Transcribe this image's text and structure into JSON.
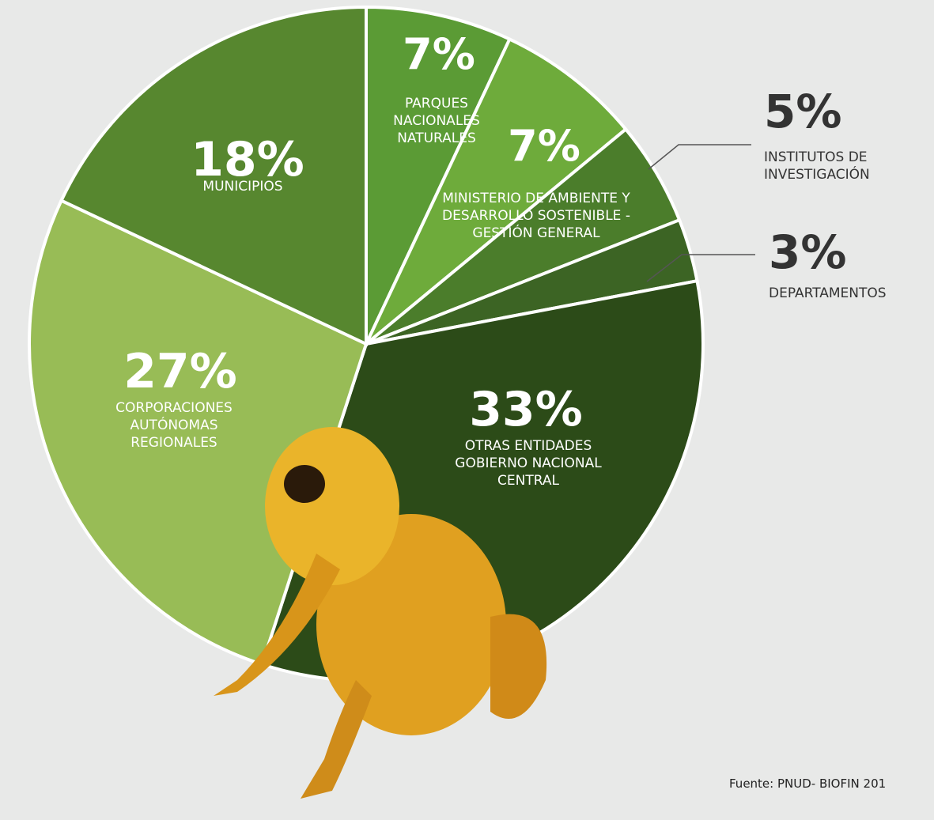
{
  "chart_data": {
    "type": "pie",
    "categories": [
      "PARQUES NACIONALES NATURALES",
      "MINISTERIO DE AMBIENTE Y DESARROLLO SOSTENIBLE - GESTIÓN GENERAL",
      "INSTITUTOS DE INVESTIGACIÓN",
      "DEPARTAMENTOS",
      "OTRAS ENTIDADES GOBIERNO NACIONAL CENTRAL",
      "CORPORACIONES AUTÓNOMAS REGIONALES",
      "MUNICIPIOS"
    ],
    "values": [
      7,
      7,
      5,
      3,
      33,
      27,
      18
    ],
    "value_labels": [
      "7%",
      "7%",
      "5%",
      "3%",
      "33%",
      "27%",
      "18%"
    ],
    "colors": [
      "#5b9b35",
      "#6eab3b",
      "#4b7d2b",
      "#3c6424",
      "#2c4b18",
      "#98bc56",
      "#57872f"
    ],
    "source": "Fuente: PNUD- BIOFIN 201"
  }
}
